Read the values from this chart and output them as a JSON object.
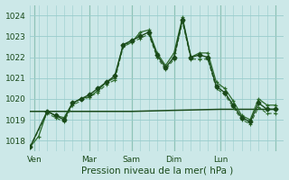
{
  "xlabel": "Pression niveau de la mer( hPa )",
  "bg_color": "#cce8e8",
  "grid_color": "#99cccc",
  "lc1": "#2d6b2d",
  "lc2": "#1a4a1a",
  "ylim": [
    1017.5,
    1024.5
  ],
  "yticks": [
    1018,
    1019,
    1020,
    1021,
    1022,
    1023,
    1024
  ],
  "xlim": [
    0,
    30
  ],
  "x_tick_positions": [
    0.5,
    7,
    12,
    17,
    22.5,
    29
  ],
  "x_tick_labels": [
    "Ven",
    "Mar",
    "Sam",
    "Dim",
    "Lun",
    ""
  ],
  "x_vline_positions": [
    0.5,
    7,
    12,
    17,
    22.5,
    29
  ],
  "series1_x": [
    0,
    1,
    2,
    3,
    4,
    5,
    6,
    7,
    8,
    9,
    10,
    11,
    12,
    13,
    14,
    15,
    16,
    17,
    18,
    19,
    20,
    21,
    22,
    23,
    24,
    25,
    26,
    27,
    28,
    29
  ],
  "series1_y": [
    1017.7,
    1018.2,
    1019.4,
    1019.2,
    1019.1,
    1019.8,
    1020.0,
    1020.1,
    1020.4,
    1020.8,
    1021.0,
    1022.6,
    1022.7,
    1023.2,
    1023.3,
    1022.2,
    1021.6,
    1022.2,
    1023.9,
    1022.0,
    1022.2,
    1022.2,
    1020.8,
    1020.5,
    1019.9,
    1019.2,
    1019.0,
    1020.0,
    1019.7,
    1019.7
  ],
  "series2_x": [
    0,
    2,
    3,
    4,
    5,
    6,
    7,
    8,
    9,
    10,
    11,
    12,
    13,
    14,
    15,
    16,
    17,
    18,
    19,
    20,
    21,
    22,
    23,
    24,
    25,
    26,
    27,
    28,
    29
  ],
  "series2_y": [
    1017.7,
    1019.4,
    1019.2,
    1019.0,
    1019.8,
    1020.0,
    1020.2,
    1020.5,
    1020.8,
    1021.1,
    1022.6,
    1022.8,
    1023.0,
    1023.2,
    1022.1,
    1021.5,
    1022.0,
    1023.8,
    1022.0,
    1022.1,
    1022.0,
    1020.6,
    1020.3,
    1019.7,
    1019.1,
    1018.9,
    1019.8,
    1019.5,
    1019.5
  ],
  "series3_x": [
    0,
    2,
    3,
    4,
    5,
    7,
    8,
    9,
    10,
    11,
    12,
    13,
    14,
    15,
    16,
    17,
    18,
    19,
    20,
    21,
    22,
    23,
    24,
    25,
    26,
    27,
    28,
    29
  ],
  "series3_y": [
    1017.7,
    1019.3,
    1019.1,
    1018.9,
    1019.7,
    1020.1,
    1020.3,
    1020.7,
    1020.9,
    1022.5,
    1022.7,
    1022.9,
    1023.1,
    1022.0,
    1021.4,
    1021.9,
    1023.7,
    1021.9,
    1021.9,
    1021.9,
    1020.5,
    1020.2,
    1019.6,
    1019.0,
    1018.8,
    1019.6,
    1019.3,
    1019.3
  ],
  "series_flat_x": [
    0,
    7,
    12,
    17,
    22.5,
    29
  ],
  "series_flat_y": [
    1019.4,
    1019.4,
    1019.4,
    1019.45,
    1019.5,
    1019.5
  ]
}
